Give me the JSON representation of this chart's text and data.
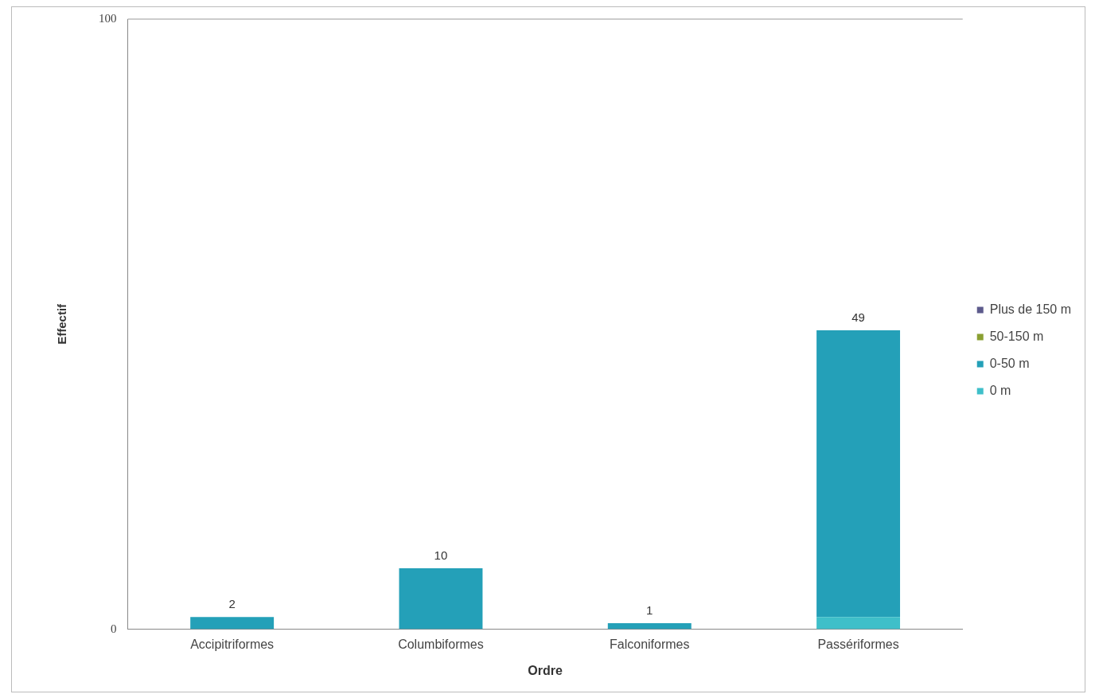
{
  "chart_data": {
    "type": "bar",
    "stacked": true,
    "xlabel": "Ordre",
    "ylabel": "Effectif",
    "categories": [
      "Accipitriformes",
      "Columbiformes",
      "Falconiformes",
      "Passériformes"
    ],
    "series": [
      {
        "name": "0 m",
        "color": "#3fbfc9",
        "values": [
          0,
          0,
          0,
          2
        ]
      },
      {
        "name": "0-50 m",
        "color": "#24a0b8",
        "values": [
          2,
          10,
          1,
          47
        ]
      },
      {
        "name": "50-150 m",
        "color": "#8aa032",
        "values": [
          0,
          0,
          0,
          0
        ]
      },
      {
        "name": "Plus de 150 m",
        "color": "#5c5a8c",
        "values": [
          0,
          0,
          0,
          0
        ]
      }
    ],
    "totals": [
      "2",
      "10",
      "1",
      "49"
    ],
    "ylim": [
      0,
      100
    ],
    "yticks": [
      0,
      100
    ],
    "grid": false,
    "legend": "right"
  }
}
